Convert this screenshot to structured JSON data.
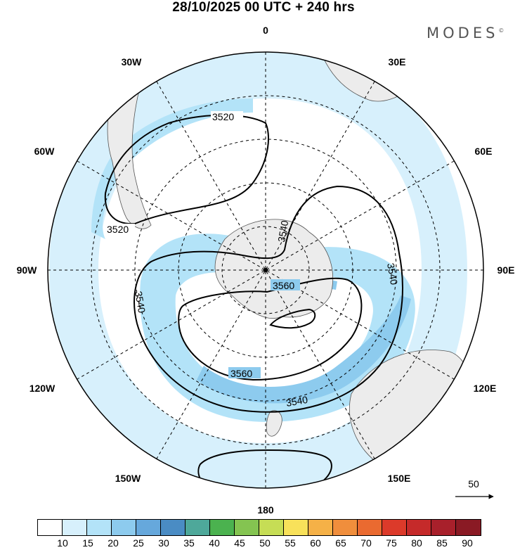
{
  "title": "28/10/2025  00 UTC  + 240 hrs",
  "brand": "MODES",
  "brand_mark": "©",
  "longitude_labels": {
    "n": "0",
    "s": "180",
    "w": "90W",
    "e": "90E",
    "w30": "30W",
    "e30": "30E",
    "w60": "60W",
    "e60": "60E",
    "w120": "120W",
    "e120": "120E",
    "w150": "150W",
    "e150": "150E"
  },
  "contour_labels": [
    "3520",
    "3520",
    "3540",
    "3540",
    "3540",
    "3560",
    "3560",
    "3540"
  ],
  "vector_reference": "50",
  "legend": {
    "colors": [
      "#ffffff",
      "#d7f0fc",
      "#b3e3f8",
      "#8dcbee",
      "#66a8dc",
      "#4a8cc4",
      "#4ea89a",
      "#4bb24f",
      "#84c451",
      "#c6dd55",
      "#f8e15a",
      "#f5b147",
      "#f08e3c",
      "#ea6a30",
      "#dc3a2a",
      "#c52a2a",
      "#a8202b",
      "#8a1a24"
    ],
    "ticks": [
      "10",
      "15",
      "20",
      "25",
      "30",
      "35",
      "40",
      "45",
      "50",
      "55",
      "60",
      "65",
      "70",
      "75",
      "80",
      "85",
      "90"
    ]
  }
}
